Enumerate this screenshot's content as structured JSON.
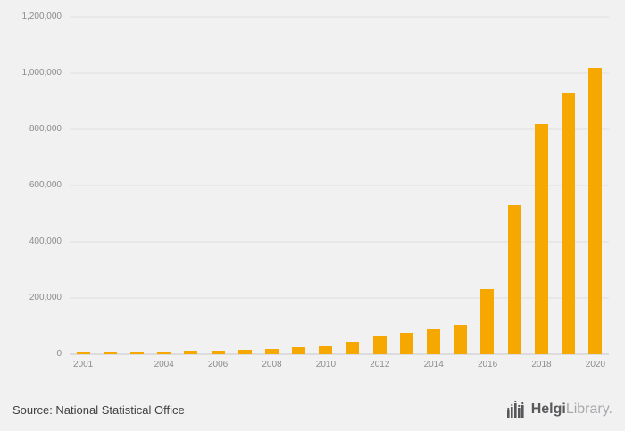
{
  "chart_data": {
    "type": "bar",
    "title": "",
    "xlabel": "",
    "ylabel": "",
    "categories": [
      "2001",
      "2002",
      "2003",
      "2004",
      "2005",
      "2006",
      "2007",
      "2008",
      "2009",
      "2010",
      "2011",
      "2012",
      "2013",
      "2014",
      "2015",
      "2016",
      "2017",
      "2018",
      "2019",
      "2020"
    ],
    "values": [
      5000,
      7000,
      9000,
      10000,
      12000,
      14000,
      17000,
      20000,
      24000,
      30000,
      45000,
      68000,
      77000,
      89000,
      106000,
      232000,
      530000,
      820000,
      930000,
      1020000
    ],
    "xtick_labels": [
      "2001",
      "2004",
      "2006",
      "2008",
      "2010",
      "2012",
      "2014",
      "2016",
      "2018",
      "2020"
    ],
    "ylim": [
      0,
      1200000
    ],
    "ytick_step": 200000,
    "grid": true,
    "legend": "none",
    "bar_color": "#F7A800"
  },
  "colors": {
    "background": "#F1F1F1",
    "gridline": "#DEDEDE",
    "axis_line": "#C6C6C6",
    "tick_text": "#8C8C8C",
    "bar": "#F7A800"
  },
  "footer": {
    "source_label": "Source: National Statistical Office",
    "logo_text_primary": "Helgi",
    "logo_text_secondary": "Library."
  }
}
